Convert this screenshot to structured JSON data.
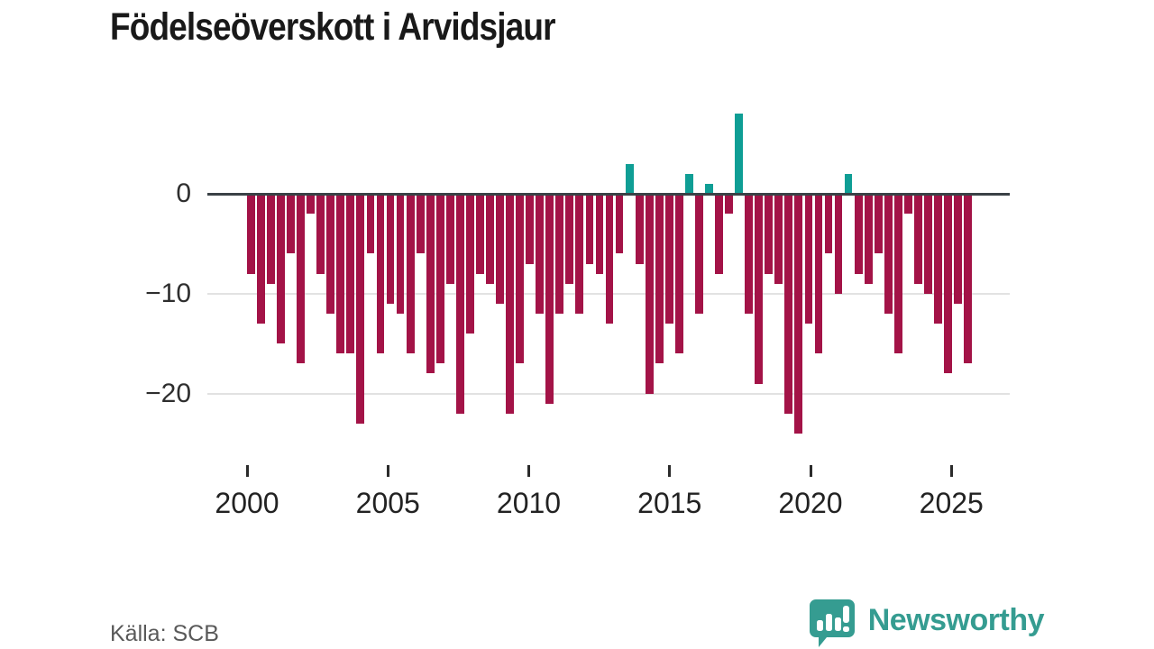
{
  "header": {
    "title": "Födelseöverskott i Arvidsjaur"
  },
  "footer": {
    "source": "Källa: SCB",
    "brand": "Newsworthy"
  },
  "colors": {
    "negative": "#a31347",
    "positive": "#0f9e95",
    "axis": "#3a4146",
    "grid": "#e2e2e2",
    "brand_teal": "#359c91"
  },
  "chart_data": {
    "type": "bar",
    "title": "Födelseöverskott i Arvidsjaur",
    "source": "Källa: SCB",
    "xlabel": "",
    "ylabel": "",
    "ylim": [
      -25,
      8.5
    ],
    "x_range": [
      2000,
      2026
    ],
    "grid": "horizontal",
    "legend": "none",
    "positive_color": "#0f9e95",
    "negative_color": "#a31347",
    "x_ticks": [
      2000,
      2005,
      2010,
      2015,
      2020,
      2025
    ],
    "y_ticks": [
      {
        "value": 0,
        "label": "0"
      },
      {
        "value": -10,
        "label": "−10"
      },
      {
        "value": -20,
        "label": "−20"
      }
    ],
    "x": [
      2000.0,
      2000.35,
      2000.71,
      2001.06,
      2001.41,
      2001.77,
      2002.12,
      2002.47,
      2002.83,
      2003.18,
      2003.54,
      2003.89,
      2004.24,
      2004.6,
      2004.95,
      2005.3,
      2005.66,
      2006.01,
      2006.36,
      2006.72,
      2007.07,
      2007.42,
      2007.78,
      2008.13,
      2008.48,
      2008.84,
      2009.19,
      2009.55,
      2009.9,
      2010.25,
      2010.61,
      2010.96,
      2011.31,
      2011.67,
      2012.02,
      2012.37,
      2012.73,
      2013.08,
      2013.43,
      2013.79,
      2014.14,
      2014.49,
      2014.85,
      2015.2,
      2015.56,
      2015.91,
      2016.26,
      2016.62,
      2016.97,
      2017.32,
      2017.68,
      2018.03,
      2018.38,
      2018.74,
      2019.09,
      2019.44,
      2019.8,
      2020.15,
      2020.51,
      2020.86,
      2021.21,
      2021.57,
      2021.92,
      2022.27,
      2022.63,
      2022.98,
      2023.33,
      2023.69,
      2024.04,
      2024.4,
      2024.75,
      2025.1,
      2025.46
    ],
    "values": [
      -8,
      -13,
      -9,
      -15,
      -6,
      -17,
      -2,
      -8,
      -12,
      -16,
      -16,
      -23,
      -6,
      -16,
      -11,
      -12,
      -16,
      -6,
      -18,
      -17,
      -9,
      -22,
      -14,
      -8,
      -9,
      -11,
      -22,
      -17,
      -7,
      -12,
      -21,
      -12,
      -9,
      -12,
      -7,
      -8,
      -13,
      -6,
      3,
      -7,
      -20,
      -17,
      -13,
      -16,
      2,
      -12,
      1,
      -8,
      -2,
      8,
      -12,
      -19,
      -8,
      -9,
      -22,
      -24,
      -13,
      -16,
      -6,
      -10,
      2,
      -8,
      -9,
      -6,
      -12,
      -16,
      -2,
      -9,
      -10,
      -13,
      -18,
      -11,
      -17
    ]
  }
}
